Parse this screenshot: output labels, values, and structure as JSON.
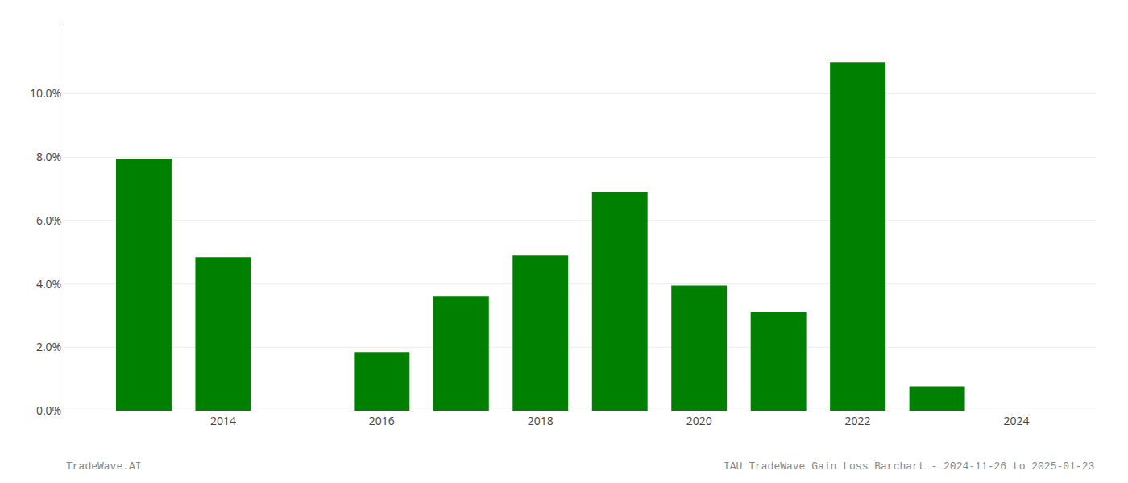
{
  "chart_data": {
    "type": "bar",
    "x": [
      2013,
      2014,
      2016,
      2017,
      2018,
      2019,
      2020,
      2021,
      2022,
      2023
    ],
    "values": [
      0.0795,
      0.0485,
      0.0185,
      0.036,
      0.049,
      0.069,
      0.0395,
      0.031,
      0.11,
      0.0075
    ],
    "color": "#008000",
    "xlim": [
      2012.0,
      2025.0
    ],
    "xticks": [
      2014,
      2016,
      2018,
      2020,
      2022,
      2024
    ],
    "ylim": [
      0,
      0.122
    ],
    "yticks": [
      {
        "value": 0.0,
        "label": "0.0%"
      },
      {
        "value": 0.02,
        "label": "2.0%"
      },
      {
        "value": 0.04,
        "label": "4.0%"
      },
      {
        "value": 0.06,
        "label": "6.0%"
      },
      {
        "value": 0.08,
        "label": "8.0%"
      },
      {
        "value": 0.1,
        "label": "10.0%"
      }
    ],
    "grid": "y",
    "annotations": [
      "TradeWave.AI",
      "IAU TradeWave Gain Loss Barchart - 2024-11-26 to 2025-01-23"
    ]
  }
}
